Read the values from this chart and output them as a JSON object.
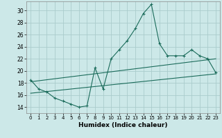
{
  "xlabel": "Humidex (Indice chaleur)",
  "bg_color": "#cce8e8",
  "grid_color": "#aacccc",
  "line_color": "#1a6b5a",
  "xlim": [
    -0.5,
    23.5
  ],
  "ylim": [
    13.0,
    31.5
  ],
  "xticks": [
    0,
    1,
    2,
    3,
    4,
    5,
    6,
    7,
    8,
    9,
    10,
    11,
    12,
    13,
    14,
    15,
    16,
    17,
    18,
    19,
    20,
    21,
    22,
    23
  ],
  "yticks": [
    14,
    16,
    18,
    20,
    22,
    24,
    26,
    28,
    30
  ],
  "series1_x": [
    0,
    1,
    2,
    3,
    4,
    5,
    6,
    7,
    8,
    9,
    10,
    11,
    12,
    13,
    14,
    15,
    16,
    17,
    18,
    19,
    20,
    21,
    22,
    23
  ],
  "series1_y": [
    18.5,
    17.0,
    16.5,
    15.5,
    15.0,
    14.5,
    14.0,
    14.2,
    20.5,
    17.0,
    22.0,
    23.5,
    25.0,
    27.0,
    29.5,
    31.0,
    24.5,
    22.5,
    22.5,
    22.5,
    23.5,
    22.5,
    22.0,
    19.7
  ],
  "line1_x": [
    0,
    23
  ],
  "line1_y": [
    18.2,
    22.0
  ],
  "line2_x": [
    0,
    23
  ],
  "line2_y": [
    16.3,
    19.5
  ]
}
